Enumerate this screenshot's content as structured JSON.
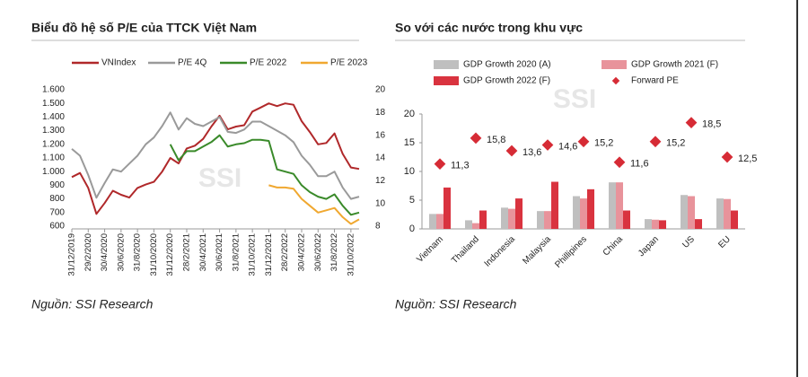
{
  "chart_data": [
    {
      "type": "line",
      "title": "Biểu đồ hệ số P/E của TTCK Việt Nam",
      "source": "Nguồn: SSI Research",
      "watermark": "SSI",
      "categories": [
        "31/12/2019",
        null,
        "29/2/2020",
        null,
        "30/4/2020",
        null,
        "30/6/2020",
        null,
        "31/8/2020",
        null,
        "31/10/2020",
        null,
        "31/12/2020",
        null,
        "28/2/2021",
        null,
        "30/4/2021",
        null,
        "30/6/2021",
        null,
        "31/8/2021",
        null,
        "31/10/2021",
        null,
        "31/12/2021",
        null,
        "28/2/2022",
        null,
        "30/4/2022",
        null,
        "30/6/2022",
        null,
        "31/8/2022",
        null,
        "31/10/2022",
        null
      ],
      "ylim": [
        600,
        1600
      ],
      "yticks": [
        600,
        700,
        800,
        900,
        {
          "value": 1000,
          "label": "1.000"
        },
        {
          "value": 1100,
          "label": "1.100"
        },
        {
          "value": 1200,
          "label": "1.200"
        },
        {
          "value": 1300,
          "label": "1.300"
        },
        {
          "value": 1400,
          "label": "1.400"
        },
        {
          "value": 1500,
          "label": "1.500"
        },
        {
          "value": 1600,
          "label": "1.600"
        }
      ],
      "y2lim": [
        8,
        20
      ],
      "y2ticks": [
        8,
        10,
        12,
        14,
        16,
        18,
        20
      ],
      "series": [
        {
          "name": "VNIndex",
          "color": "#b0282a",
          "values": [
            960,
            990,
            880,
            690,
            770,
            860,
            830,
            810,
            880,
            905,
            925,
            1000,
            1100,
            1060,
            1170,
            1190,
            1240,
            1330,
            1410,
            1310,
            1330,
            1340,
            1440,
            1470,
            1500,
            1480,
            1500,
            1490,
            1370,
            1290,
            1200,
            1210,
            1280,
            1130,
            1030,
            1020
          ]
        },
        {
          "name": "P/E 4Q",
          "color": "#9a9a9a",
          "axis": "y2",
          "values": [
            14.8,
            14.2,
            12.5,
            10.5,
            11.8,
            13.0,
            12.8,
            13.5,
            14.2,
            15.2,
            15.8,
            16.8,
            18.0,
            16.5,
            17.5,
            17.0,
            16.8,
            17.2,
            17.6,
            16.3,
            16.2,
            16.5,
            17.2,
            17.2,
            16.8,
            16.4,
            16.0,
            15.4,
            14.2,
            13.4,
            12.4,
            12.4,
            12.8,
            11.4,
            10.4,
            10.6
          ]
        },
        {
          "name": "P/E 2022",
          "color": "#3a8a2a",
          "axis": "y2",
          "values": [
            null,
            null,
            null,
            null,
            null,
            null,
            null,
            null,
            null,
            null,
            null,
            null,
            15.2,
            13.8,
            14.6,
            14.6,
            15.0,
            15.4,
            16.0,
            15.0,
            15.2,
            15.3,
            15.6,
            15.6,
            15.5,
            13.0,
            12.8,
            12.6,
            11.6,
            11.0,
            10.6,
            10.4,
            10.8,
            9.8,
            9.0,
            9.2
          ]
        },
        {
          "name": "P/E 2023",
          "color": "#f0a830",
          "axis": "y2",
          "values": [
            null,
            null,
            null,
            null,
            null,
            null,
            null,
            null,
            null,
            null,
            null,
            null,
            null,
            null,
            null,
            null,
            null,
            null,
            null,
            null,
            null,
            null,
            null,
            null,
            11.6,
            11.4,
            11.4,
            11.3,
            10.4,
            9.8,
            9.2,
            9.4,
            9.6,
            8.8,
            8.2,
            8.6
          ]
        }
      ]
    },
    {
      "type": "bar",
      "title": "So với các nước trong khu vực",
      "source": "Nguồn: SSI Research",
      "watermark": "SSI",
      "categories": [
        "Vietnam",
        "Thailand",
        "Indonesia",
        "Malaysia",
        "Phillipines",
        "China",
        "Japan",
        "US",
        "EU"
      ],
      "ylim": [
        0,
        20
      ],
      "yticks": [
        0,
        5,
        10,
        15,
        20
      ],
      "series": [
        {
          "name": "GDP Growth 2020 (A)",
          "color": "#bfbfbf",
          "values": [
            2.6,
            1.5,
            3.7,
            3.1,
            5.7,
            8.1,
            1.7,
            5.9,
            5.3
          ]
        },
        {
          "name": "GDP Growth 2021 (F)",
          "color": "#e8939b",
          "values": [
            2.6,
            1.0,
            3.5,
            3.1,
            5.3,
            8.1,
            1.6,
            5.7,
            5.2
          ]
        },
        {
          "name": "GDP Growth 2022 (F)",
          "color": "#d9333f",
          "values": [
            7.2,
            3.2,
            5.3,
            8.2,
            6.9,
            3.2,
            1.5,
            1.7,
            3.2
          ]
        },
        {
          "name": "Forward PE",
          "color": "#d62b35",
          "marker": "diamond",
          "values": [
            11.3,
            15.8,
            13.6,
            14.6,
            15.2,
            11.6,
            15.2,
            18.5,
            12.5
          ],
          "value_labels": [
            "11,3",
            "15,8",
            "13,6",
            "14,6",
            "15,2",
            "11,6",
            "15,2",
            "18,5",
            "12,5"
          ]
        }
      ]
    }
  ]
}
